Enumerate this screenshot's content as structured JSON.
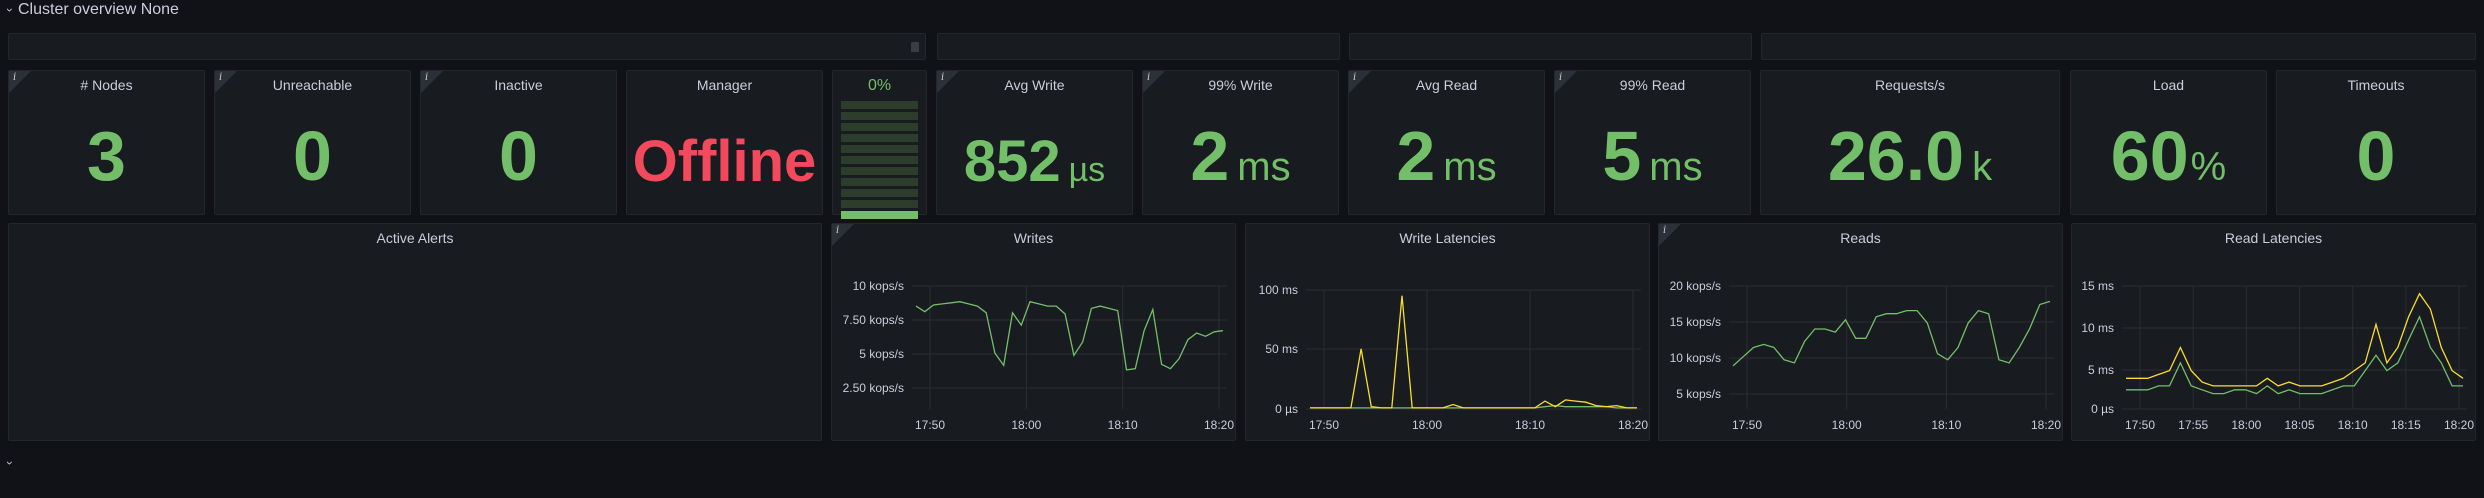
{
  "row": {
    "title": "Cluster overview None"
  },
  "stats": {
    "nodes": {
      "title": "# Nodes",
      "value": "3"
    },
    "unreachable": {
      "title": "Unreachable",
      "value": "0"
    },
    "inactive": {
      "title": "Inactive",
      "value": "0"
    },
    "manager": {
      "title": "Manager",
      "value": "Offline"
    },
    "gauge": {
      "title": "0%",
      "level": 0.0
    },
    "avg_write": {
      "title": "Avg Write",
      "value": "852",
      "unit": "µs"
    },
    "p99_write": {
      "title": "99% Write",
      "value": "2",
      "unit": "ms"
    },
    "avg_read": {
      "title": "Avg Read",
      "value": "2",
      "unit": "ms"
    },
    "p99_read": {
      "title": "99% Read",
      "value": "5",
      "unit": "ms"
    },
    "requests": {
      "title": "Requests/s",
      "value": "26.0",
      "unit": "k"
    },
    "load": {
      "title": "Load",
      "value": "60",
      "unit": "%"
    },
    "timeouts": {
      "title": "Timeouts",
      "value": "0"
    }
  },
  "panels": {
    "alerts": {
      "title": "Active Alerts"
    },
    "writes": {
      "title": "Writes"
    },
    "write_latencies": {
      "title": "Write Latencies"
    },
    "reads": {
      "title": "Reads"
    },
    "read_latencies": {
      "title": "Read Latencies"
    }
  },
  "colors": {
    "green": "#73bf69",
    "yellow": "#fade2a",
    "red": "#f2495c"
  },
  "chart_data": [
    {
      "id": "writes",
      "type": "line",
      "title": "Writes",
      "xlabel": "",
      "ylabel": "",
      "x_ticks": [
        "17:50",
        "18:00",
        "18:10",
        "18:20"
      ],
      "y_ticks": [
        "10 kops/s",
        "7.50 kops/s",
        "5 kops/s",
        "2.50 kops/s"
      ],
      "ylim": [
        0,
        11
      ],
      "series": [
        {
          "color": "#73bf69",
          "values": [
            9.2,
            8.7,
            9.3,
            9.4,
            9.5,
            9.6,
            9.4,
            9.2,
            8.6,
            5.0,
            3.9,
            8.6,
            7.5,
            9.6,
            9.4,
            9.2,
            9.2,
            8.5,
            4.8,
            6.0,
            9.0,
            9.2,
            9.0,
            8.8,
            3.5,
            3.6,
            7.0,
            8.9,
            4.0,
            3.6,
            4.5,
            6.2,
            6.8,
            6.5,
            6.9,
            7.0
          ]
        }
      ]
    },
    {
      "id": "write_latencies",
      "type": "line",
      "title": "Write Latencies",
      "x_ticks": [
        "17:50",
        "18:00",
        "18:10",
        "18:20"
      ],
      "y_ticks": [
        "100 ms",
        "50 ms",
        "0 µs"
      ],
      "ylim": [
        0,
        105
      ],
      "series": [
        {
          "color": "#73bf69",
          "values": [
            1,
            1,
            1,
            1,
            1,
            1,
            1,
            1,
            1,
            1,
            1,
            1,
            1,
            1,
            1,
            1,
            1,
            1,
            1,
            1,
            1,
            1,
            1,
            2,
            3,
            2,
            2,
            2,
            2,
            2,
            1,
            1,
            1
          ]
        },
        {
          "color": "#fade2a",
          "values": [
            1,
            1,
            1,
            1,
            1,
            53,
            2,
            1,
            1,
            100,
            1,
            1,
            1,
            1,
            4,
            1,
            1,
            1,
            1,
            1,
            1,
            1,
            1,
            7,
            2,
            8,
            7,
            6,
            3,
            2,
            3,
            1,
            1
          ]
        }
      ]
    },
    {
      "id": "reads",
      "type": "line",
      "title": "Reads",
      "x_ticks": [
        "17:50",
        "18:00",
        "18:10",
        "18:20"
      ],
      "y_ticks": [
        "20 kops/s",
        "15 kops/s",
        "10 kops/s",
        "5 kops/s"
      ],
      "ylim": [
        2,
        22
      ],
      "series": [
        {
          "color": "#73bf69",
          "values": [
            9,
            10.5,
            12,
            12.5,
            12,
            10,
            9.5,
            13,
            15,
            15,
            14.5,
            16.5,
            13.5,
            13.5,
            17,
            17.5,
            17.5,
            18,
            18,
            16,
            11,
            10,
            12,
            16,
            18,
            17.5,
            10,
            9.5,
            12,
            15,
            19,
            19.5
          ]
        }
      ]
    },
    {
      "id": "read_latencies",
      "type": "line",
      "title": "Read Latencies",
      "x_ticks": [
        "17:50",
        "17:55",
        "18:00",
        "18:05",
        "18:10",
        "18:15",
        "18:20"
      ],
      "y_ticks": [
        "15 ms",
        "10 ms",
        "5 ms",
        "0 µs"
      ],
      "ylim": [
        0,
        16
      ],
      "series": [
        {
          "color": "#73bf69",
          "values": [
            2.5,
            2.5,
            2.5,
            3,
            3,
            6,
            3,
            2.5,
            2,
            2,
            2.5,
            2.5,
            2,
            3,
            2,
            2.5,
            2,
            2,
            2,
            2.5,
            3,
            3,
            5,
            7,
            5,
            6,
            9,
            12,
            8,
            6,
            3,
            3
          ]
        },
        {
          "color": "#fade2a",
          "values": [
            4,
            4,
            4,
            4.5,
            5,
            8,
            5,
            3.5,
            3,
            3,
            3,
            3,
            3,
            4,
            3,
            3.5,
            3,
            3,
            3,
            3.5,
            4,
            5,
            6,
            11,
            6,
            8,
            12,
            15,
            13,
            8,
            5,
            4
          ]
        }
      ]
    }
  ]
}
